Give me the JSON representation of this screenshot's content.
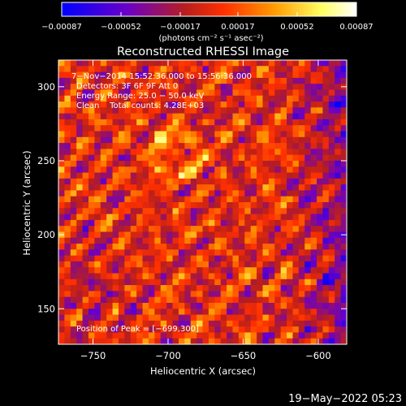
{
  "chart_data": {
    "type": "heatmap",
    "title": "Reconstructed RHESSI Image",
    "xlabel": "Heliocentric X (arcsec)",
    "ylabel": "Heliocentric Y (arcsec)",
    "xlim": [
      -773,
      -581
    ],
    "ylim": [
      126,
      318
    ],
    "xticks": [
      -750,
      -700,
      -650,
      -600
    ],
    "xtick_labels": [
      "−750",
      "−700",
      "−650",
      "−600"
    ],
    "yticks": [
      150,
      200,
      250,
      300
    ],
    "ytick_labels": [
      "150",
      "200",
      "250",
      "300"
    ],
    "colorbar": {
      "ticks": [
        -0.00087,
        -0.00052,
        -0.00017,
        0.00017,
        0.00052,
        0.00087
      ],
      "tick_labels": [
        "−0.00087",
        "−0.00052",
        "−0.00017",
        "0.00017",
        "0.00052",
        "0.00087"
      ],
      "unit_label": "(photons cm⁻² s⁻¹ asec⁻²)",
      "range": [
        -0.00087,
        0.00087
      ],
      "colors": [
        "#0000ff",
        "#6a00c8",
        "#b81e1e",
        "#ff3000",
        "#ff9a00",
        "#ffff60",
        "#ffffff"
      ]
    },
    "annotations": [
      "7−Nov−2014 15:52:36.000 to 15:56:36.000",
      "Detectors: 3F 6F 9F Att 0",
      "Energy Range: 25.0 − 50.0 keV",
      "Clean    Total counts: 4.28E+03",
      "Position of Peak = [−699,300]"
    ],
    "grid": false
  },
  "footer": {
    "timestamp": "19−May−2022 05:23"
  }
}
